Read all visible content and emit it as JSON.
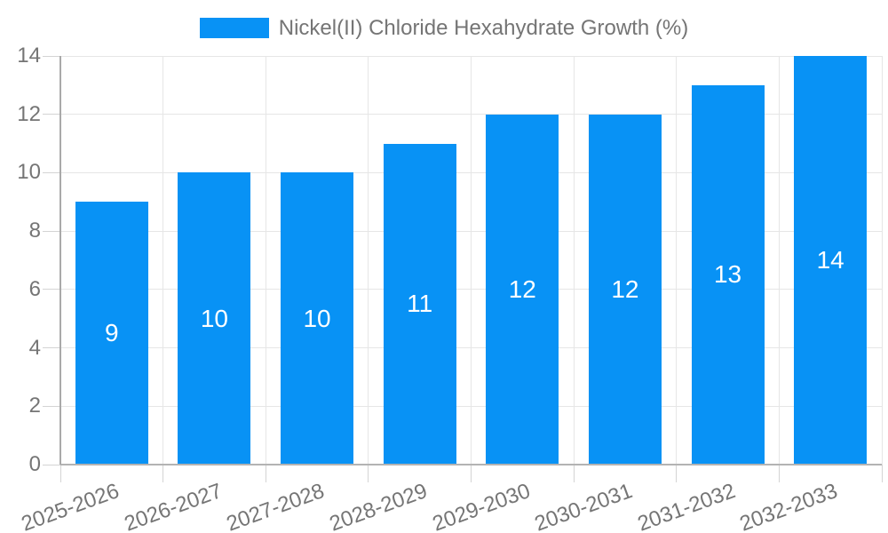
{
  "legend": {
    "label": "Nickel(II) Chloride Hexahydrate Growth (%)"
  },
  "chart_data": {
    "type": "bar",
    "series_name": "Nickel(II) Chloride Hexahydrate Growth (%)",
    "categories": [
      "2025-2026",
      "2026-2027",
      "2027-2028",
      "2028-2029",
      "2029-2030",
      "2030-2031",
      "2031-2032",
      "2032-2033"
    ],
    "values": [
      9,
      10,
      10,
      11,
      12,
      12,
      13,
      14
    ],
    "bar_labels": [
      "9",
      "10",
      "10",
      "11",
      "12",
      "12",
      "13",
      "14"
    ],
    "yticks": [
      0,
      2,
      4,
      6,
      8,
      10,
      12,
      14
    ],
    "ylim": [
      0,
      14
    ],
    "grid": true,
    "legend_position": "top-center",
    "bar_color": "#0892F5",
    "bar_label_color": "#ffffff",
    "axis_text_color": "#757575"
  }
}
